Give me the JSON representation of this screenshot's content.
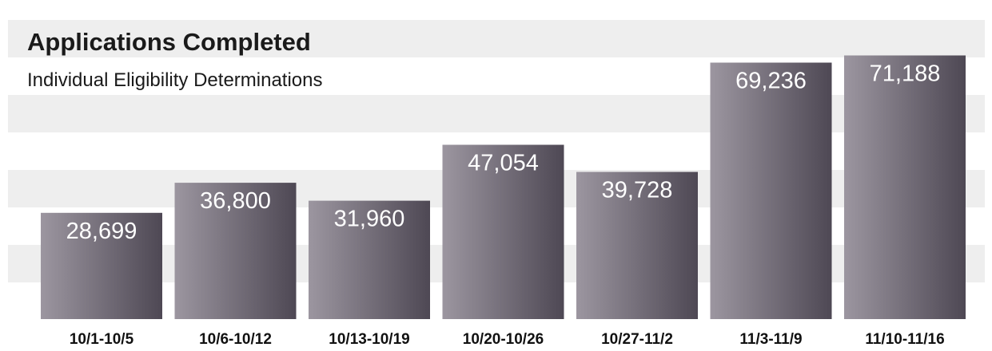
{
  "chart_data": {
    "type": "bar",
    "title": "Applications Completed",
    "subtitle": "Individual Eligibility Determinations",
    "categories": [
      "10/1-10/5",
      "10/6-10/12",
      "10/13-10/19",
      "10/20-10/26",
      "10/27-11/2",
      "11/3-11/9",
      "11/10-11/16"
    ],
    "values": [
      28699,
      36800,
      31960,
      47054,
      39728,
      69236,
      71188
    ],
    "value_labels": [
      "28,699",
      "36,800",
      "31,960",
      "47,054",
      "39,728",
      "69,236",
      "71,188"
    ],
    "xlabel": "",
    "ylabel": "",
    "ylim": [
      0,
      70000
    ],
    "grid": "horizontal bands",
    "legend": "none"
  },
  "colors": {
    "bar_light": "#9c96a0",
    "bar_dark": "#4e4854",
    "band_light": "#eeeeee",
    "band_white": "#ffffff"
  }
}
